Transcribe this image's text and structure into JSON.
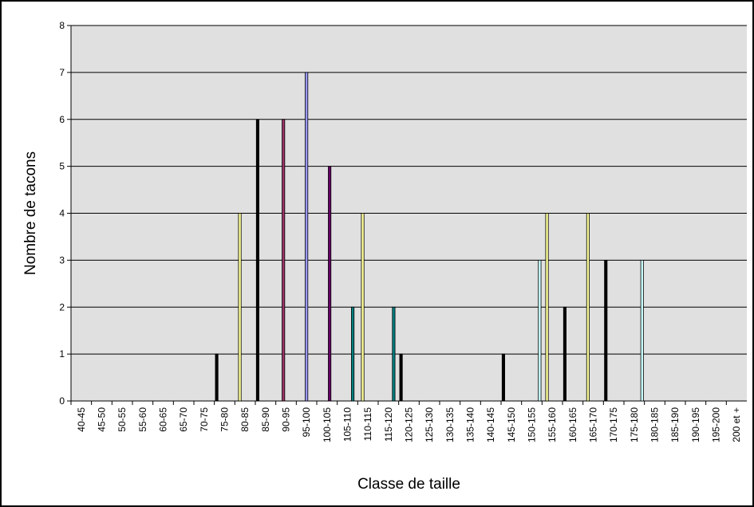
{
  "chart_data": {
    "type": "bar",
    "xlabel": "Classe de taille",
    "ylabel": "Nombre de tacons",
    "ylim": [
      0,
      8
    ],
    "yticks": [
      0,
      1,
      2,
      3,
      4,
      5,
      6,
      7,
      8
    ],
    "grid": true,
    "legend": "none",
    "categories": [
      "40-45",
      "45-50",
      "50-55",
      "55-60",
      "60-65",
      "65-70",
      "70-75",
      "75-80",
      "80-85",
      "85-90",
      "90-95",
      "95-100",
      "100-105",
      "105-110",
      "110-115",
      "115-120",
      "120-125",
      "125-130",
      "130-135",
      "135-140",
      "140-145",
      "145-150",
      "150-155",
      "155-160",
      "160-165",
      "165-170",
      "170-175",
      "175-180",
      "180-185",
      "185-190",
      "190-195",
      "195-200",
      "200 et +"
    ],
    "series": [
      {
        "values": [
          0,
          0,
          0,
          0,
          0,
          0,
          0,
          1,
          0,
          6,
          0,
          0,
          0,
          0,
          0,
          0,
          1,
          0,
          0,
          0,
          0,
          1,
          0,
          0,
          2,
          0,
          3,
          0,
          0,
          0,
          0,
          0,
          0
        ],
        "color": "#000000"
      },
      {
        "values": [
          0,
          0,
          0,
          0,
          0,
          0,
          0,
          0,
          4,
          0,
          0,
          0,
          0,
          0,
          4,
          0,
          0,
          0,
          0,
          0,
          0,
          0,
          0,
          4,
          0,
          4,
          0,
          0,
          0,
          0,
          0,
          0,
          0
        ],
        "color": "#ffff99"
      },
      {
        "values": [
          0,
          0,
          0,
          0,
          0,
          0,
          0,
          0,
          0,
          0,
          6,
          0,
          0,
          0,
          0,
          0,
          0,
          0,
          0,
          0,
          0,
          0,
          0,
          0,
          0,
          0,
          0,
          0,
          0,
          0,
          0,
          0,
          0
        ],
        "color": "#993366"
      },
      {
        "values": [
          0,
          0,
          0,
          0,
          0,
          0,
          0,
          0,
          0,
          0,
          0,
          7,
          0,
          0,
          0,
          0,
          0,
          0,
          0,
          0,
          0,
          0,
          0,
          0,
          0,
          0,
          0,
          0,
          0,
          0,
          0,
          0,
          0
        ],
        "color": "#9999ff"
      },
      {
        "values": [
          0,
          0,
          0,
          0,
          0,
          0,
          0,
          0,
          0,
          0,
          0,
          0,
          5,
          0,
          0,
          0,
          0,
          0,
          0,
          0,
          0,
          0,
          0,
          0,
          0,
          0,
          0,
          0,
          0,
          0,
          0,
          0,
          0
        ],
        "color": "#660066"
      },
      {
        "values": [
          0,
          0,
          0,
          0,
          0,
          0,
          0,
          0,
          0,
          0,
          0,
          0,
          0,
          2,
          0,
          2,
          0,
          0,
          0,
          0,
          0,
          0,
          0,
          0,
          0,
          0,
          0,
          0,
          0,
          0,
          0,
          0,
          0
        ],
        "color": "#008080"
      },
      {
        "values": [
          0,
          0,
          0,
          0,
          0,
          0,
          0,
          0,
          0,
          0,
          0,
          0,
          0,
          0,
          0,
          0,
          0,
          0,
          0,
          0,
          0,
          0,
          3,
          0,
          0,
          0,
          0,
          3,
          0,
          0,
          0,
          0,
          0
        ],
        "color": "#ccffff"
      }
    ]
  },
  "colors": {
    "plot_background": "#e0e0e0",
    "frame": "#000000",
    "gridline": "#000000"
  }
}
